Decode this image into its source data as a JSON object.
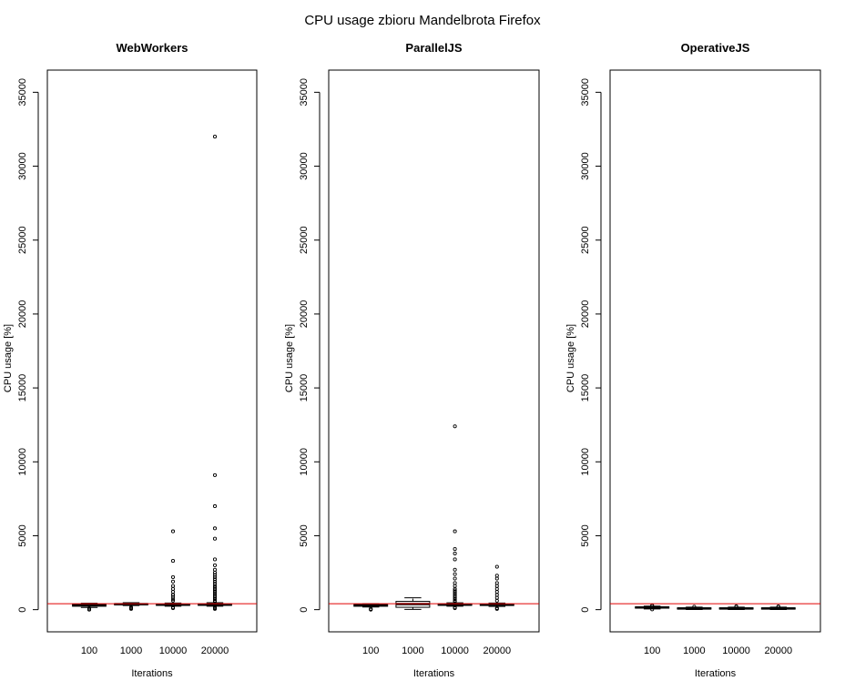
{
  "figure": {
    "title": "CPU usage   zbioru Mandelbrota Firefox"
  },
  "colors": {
    "reference_line": "#e00000",
    "box": "#000000",
    "frame": "#000000"
  },
  "chart_data": [
    {
      "type": "box",
      "title": "WebWorkers",
      "xlabel": "Iterations",
      "ylabel": "CPU usage [%]",
      "categories": [
        "100",
        "1000",
        "10000",
        "20000"
      ],
      "yticks": [
        0,
        5000,
        10000,
        15000,
        20000,
        25000,
        30000,
        35000
      ],
      "ylim": [
        -1500,
        36500
      ],
      "reference_line": 400,
      "boxes": [
        {
          "q1": 230,
          "median": 300,
          "q3": 350,
          "whisker_low": 150,
          "whisker_high": 430
        },
        {
          "q1": 330,
          "median": 370,
          "q3": 410,
          "whisker_low": 280,
          "whisker_high": 470
        },
        {
          "q1": 290,
          "median": 330,
          "q3": 380,
          "whisker_low": 230,
          "whisker_high": 450
        },
        {
          "q1": 290,
          "median": 340,
          "q3": 390,
          "whisker_low": 230,
          "whisker_high": 470
        }
      ],
      "outliers": [
        [
          0,
          80,
          10
        ],
        [
          50,
          100,
          150
        ],
        [
          1000,
          5300,
          3300,
          2200,
          1900,
          1600,
          1400,
          1200,
          1000,
          850,
          700,
          600,
          100,
          150
        ],
        [
          32000,
          9100,
          7000,
          5500,
          4800,
          3400,
          3000,
          2700,
          2500,
          2350,
          2200,
          2050,
          1900,
          1750,
          1600,
          1500,
          1400,
          1300,
          1200,
          1100,
          1000,
          900,
          800,
          700,
          600,
          550,
          100,
          50,
          150
        ]
      ]
    },
    {
      "type": "box",
      "title": "ParallelJS",
      "xlabel": "Iterations",
      "ylabel": "CPU usage [%]",
      "categories": [
        "100",
        "1000",
        "10000",
        "20000"
      ],
      "yticks": [
        0,
        5000,
        10000,
        15000,
        20000,
        25000,
        30000,
        35000
      ],
      "ylim": [
        -1500,
        36500
      ],
      "reference_line": 400,
      "boxes": [
        {
          "q1": 230,
          "median": 290,
          "q3": 340,
          "whisker_low": 180,
          "whisker_high": 400
        },
        {
          "q1": 160,
          "median": 380,
          "q3": 560,
          "whisker_low": 20,
          "whisker_high": 800
        },
        {
          "q1": 290,
          "median": 340,
          "q3": 390,
          "whisker_low": 230,
          "whisker_high": 460
        },
        {
          "q1": 280,
          "median": 330,
          "q3": 380,
          "whisker_low": 220,
          "whisker_high": 450
        }
      ],
      "outliers": [
        [
          0,
          50
        ],
        [],
        [
          12400,
          5300,
          4100,
          3800,
          3400,
          2700,
          2400,
          2100,
          1800,
          1600,
          1400,
          1300,
          1200,
          1100,
          1000,
          900,
          800,
          700,
          600,
          550,
          150,
          100
        ],
        [
          2900,
          2300,
          2100,
          1800,
          1600,
          1400,
          1200,
          1000,
          800,
          600,
          100,
          50
        ]
      ]
    },
    {
      "type": "box",
      "title": "OperativeJS",
      "xlabel": "Iterations",
      "ylabel": "CPU usage [%]",
      "categories": [
        "100",
        "1000",
        "10000",
        "20000"
      ],
      "yticks": [
        0,
        5000,
        10000,
        15000,
        20000,
        25000,
        30000,
        35000
      ],
      "ylim": [
        -1500,
        36500
      ],
      "reference_line": 400,
      "boxes": [
        {
          "q1": 100,
          "median": 150,
          "q3": 190,
          "whisker_low": 50,
          "whisker_high": 240
        },
        {
          "q1": 40,
          "median": 80,
          "q3": 120,
          "whisker_low": 10,
          "whisker_high": 170
        },
        {
          "q1": 40,
          "median": 80,
          "q3": 120,
          "whisker_low": 10,
          "whisker_high": 170
        },
        {
          "q1": 40,
          "median": 80,
          "q3": 120,
          "whisker_low": 10,
          "whisker_high": 170
        }
      ],
      "outliers": [
        [
          20,
          250,
          280
        ],
        [
          200
        ],
        [
          200,
          230
        ],
        [
          200,
          220
        ]
      ]
    }
  ]
}
